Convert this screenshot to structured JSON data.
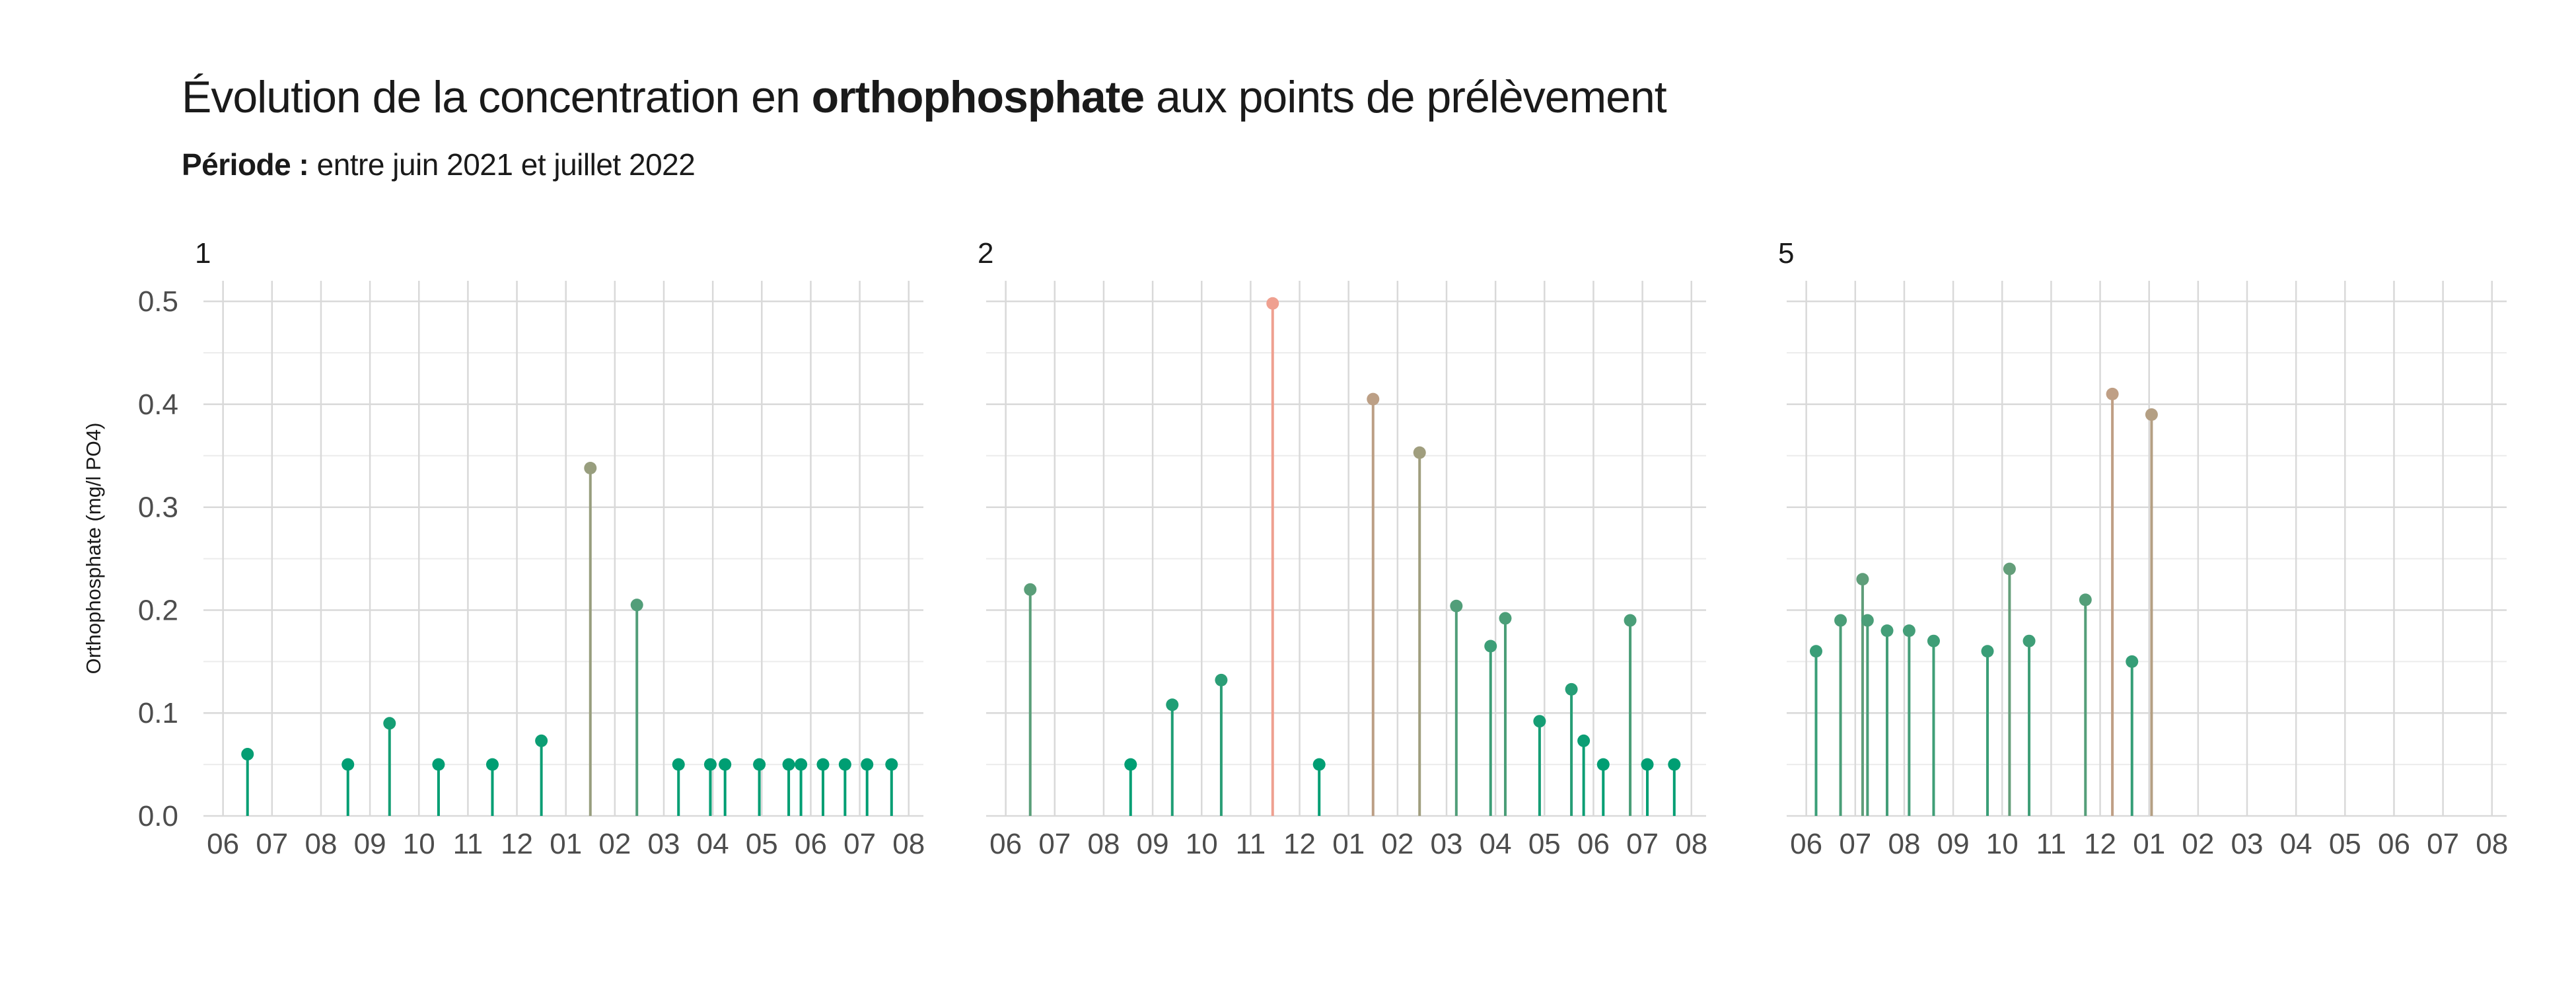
{
  "header": {
    "title_prefix": "Évolution de la concentration en ",
    "title_bold": "orthophosphate",
    "title_suffix": " aux points de prélèvement",
    "subtitle_bold": "Période :",
    "subtitle_text": " entre juin 2021 et juillet 2022"
  },
  "chart_data": {
    "type": "lollipop",
    "ylabel": "Orthophosphate (mg/l PO4)",
    "ylim": [
      0,
      0.52
    ],
    "y_ticks": [
      0.0,
      0.1,
      0.2,
      0.3,
      0.4,
      0.5
    ],
    "y_tick_labels": [
      "0.0",
      "0.1",
      "0.2",
      "0.3",
      "0.4",
      "0.5"
    ],
    "x_domain_months": [
      5.6,
      20.3
    ],
    "x_ticks": [
      6,
      7,
      8,
      9,
      10,
      11,
      12,
      13,
      14,
      15,
      16,
      17,
      18,
      19,
      20
    ],
    "x_tick_labels": [
      "06",
      "07",
      "08",
      "09",
      "10",
      "11",
      "12",
      "01",
      "02",
      "03",
      "04",
      "05",
      "06",
      "07",
      "08"
    ],
    "grid": true,
    "color_scale": {
      "low": "#009e73",
      "mid": "#9e9e7e",
      "high": "#f0a090"
    },
    "panels": [
      {
        "name": "1",
        "x": [
          6.5,
          8.55,
          9.4,
          10.4,
          11.5,
          12.5,
          13.5,
          14.45,
          15.3,
          15.95,
          16.25,
          16.95,
          17.55,
          17.8,
          18.25,
          18.7,
          19.15,
          19.65
        ],
        "values": [
          0.06,
          0.05,
          0.09,
          0.05,
          0.05,
          0.073,
          0.338,
          0.205,
          0.05,
          0.05,
          0.05,
          0.05,
          0.05,
          0.05,
          0.05,
          0.05,
          0.05,
          0.05
        ]
      },
      {
        "name": "2",
        "x": [
          6.5,
          8.55,
          9.4,
          10.4,
          11.45,
          12.4,
          13.5,
          14.45,
          15.2,
          15.9,
          16.2,
          16.9,
          17.55,
          17.8,
          18.2,
          18.75,
          19.1,
          19.65
        ],
        "values": [
          0.22,
          0.05,
          0.108,
          0.132,
          0.498,
          0.05,
          0.405,
          0.353,
          0.204,
          0.165,
          0.192,
          0.092,
          0.123,
          0.073,
          0.05,
          0.19,
          0.05,
          0.05
        ]
      },
      {
        "name": "5",
        "x": [
          6.2,
          6.7,
          7.15,
          7.25,
          7.65,
          8.1,
          8.6,
          9.7,
          10.15,
          10.55,
          11.7,
          12.25,
          12.65,
          13.05
        ],
        "values": [
          0.16,
          0.19,
          0.23,
          0.19,
          0.18,
          0.18,
          0.17,
          0.16,
          0.24,
          0.17,
          0.21,
          0.41,
          0.15,
          0.39
        ]
      }
    ]
  }
}
